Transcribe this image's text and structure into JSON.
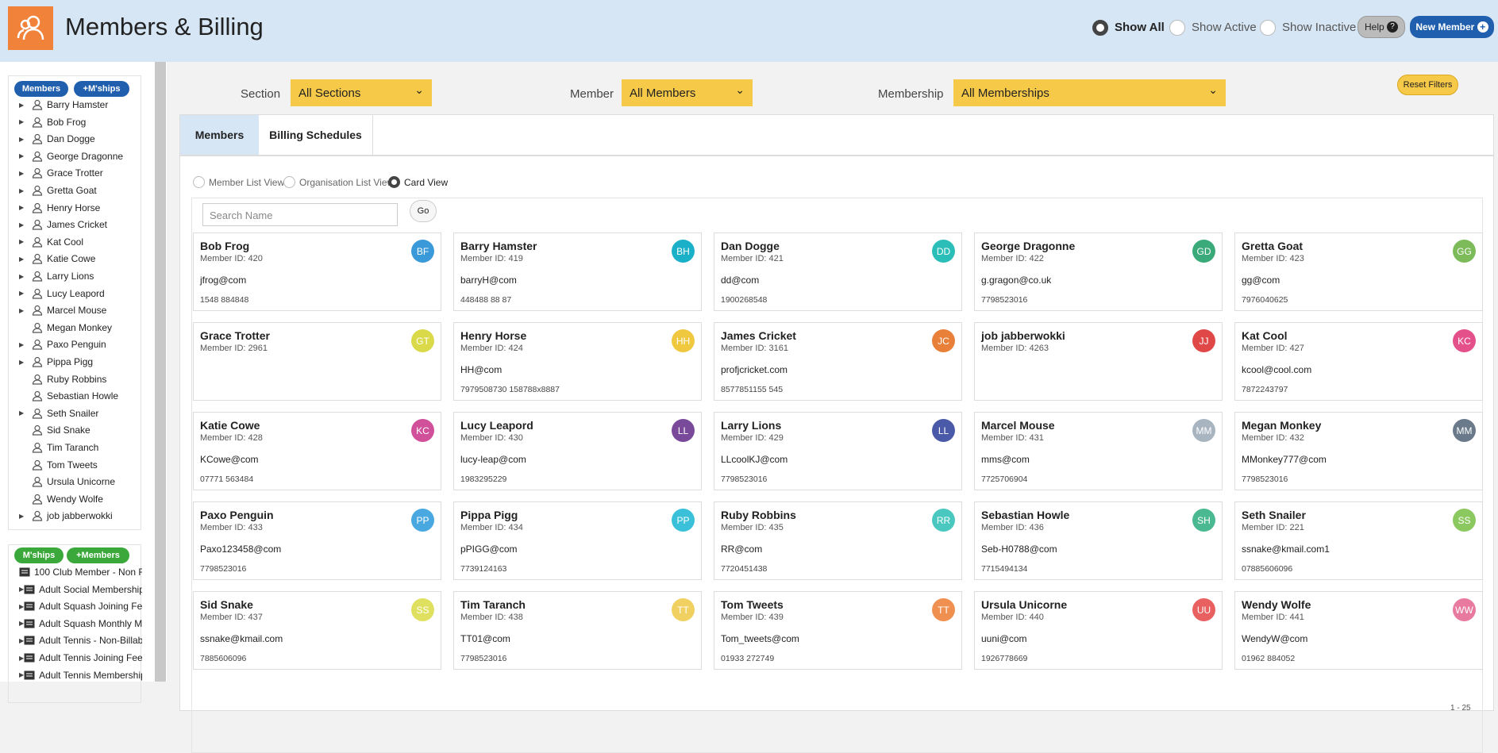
{
  "header": {
    "title": "Members & Billing",
    "radios": [
      "Show All",
      "Show Active",
      "Show Inactive"
    ],
    "help": "Help",
    "new_member": "New Member"
  },
  "sidebar": {
    "members_buttons": [
      "Members",
      "+M'ships"
    ],
    "members": [
      {
        "name": "Barry Hamster",
        "expandable": true
      },
      {
        "name": "Bob Frog",
        "expandable": true
      },
      {
        "name": "Dan Dogge",
        "expandable": true
      },
      {
        "name": "George Dragonne",
        "expandable": true
      },
      {
        "name": "Grace Trotter",
        "expandable": true
      },
      {
        "name": "Gretta Goat",
        "expandable": true
      },
      {
        "name": "Henry Horse",
        "expandable": true
      },
      {
        "name": "James Cricket",
        "expandable": true
      },
      {
        "name": "Kat Cool",
        "expandable": true
      },
      {
        "name": "Katie Cowe",
        "expandable": true
      },
      {
        "name": "Larry Lions",
        "expandable": true
      },
      {
        "name": "Lucy Leapord",
        "expandable": true
      },
      {
        "name": "Marcel Mouse",
        "expandable": true
      },
      {
        "name": "Megan Monkey",
        "expandable": false
      },
      {
        "name": "Paxo Penguin",
        "expandable": true
      },
      {
        "name": "Pippa Pigg",
        "expandable": true
      },
      {
        "name": "Ruby Robbins",
        "expandable": false
      },
      {
        "name": "Sebastian Howle",
        "expandable": false
      },
      {
        "name": "Seth Snailer",
        "expandable": true
      },
      {
        "name": "Sid Snake",
        "expandable": false
      },
      {
        "name": "Tim Taranch",
        "expandable": false
      },
      {
        "name": "Tom Tweets",
        "expandable": false
      },
      {
        "name": "Ursula Unicorne",
        "expandable": false
      },
      {
        "name": "Wendy Wolfe",
        "expandable": false
      },
      {
        "name": "job jabberwokki",
        "expandable": true
      }
    ],
    "memberships_buttons": [
      "M'ships",
      "+Members"
    ],
    "memberships": [
      {
        "name": "100 Club Member - Non F",
        "expandable": false
      },
      {
        "name": "Adult Social Membership",
        "expandable": true
      },
      {
        "name": "Adult Squash Joining Fee",
        "expandable": true
      },
      {
        "name": "Adult Squash Monthly Me",
        "expandable": true
      },
      {
        "name": "Adult Tennis - Non-Billabl",
        "expandable": true
      },
      {
        "name": "Adult Tennis Joining Fee",
        "expandable": true
      },
      {
        "name": "Adult Tennis Membership",
        "expandable": true
      }
    ]
  },
  "filters": [
    {
      "label": "Section",
      "value": "All Sections"
    },
    {
      "label": "Member",
      "value": "All Members"
    },
    {
      "label": "Membership",
      "value": "All Memberships"
    }
  ],
  "reset": "Reset Filters",
  "tabs": [
    "Members",
    "Billing Schedules"
  ],
  "views": [
    "Member List View",
    "Organisation List View",
    "Card View"
  ],
  "search_placeholder": "Search Name",
  "go": "Go",
  "cards": [
    {
      "name": "Bob Frog",
      "id": "Member ID: 420",
      "email": "jfrog@com",
      "phone": "1548 884848",
      "initials": "BF",
      "color": "#3a9ad9"
    },
    {
      "name": "Barry Hamster",
      "id": "Member ID: 419",
      "email": "barryH@com",
      "phone": "448488 88 87",
      "initials": "BH",
      "color": "#1ab0c8"
    },
    {
      "name": "Dan Dogge",
      "id": "Member ID: 421",
      "email": "dd@com",
      "phone": "1900268548",
      "initials": "DD",
      "color": "#2bbdb8"
    },
    {
      "name": "George Dragonne",
      "id": "Member ID: 422",
      "email": "g.gragon@co.uk",
      "phone": "7798523016",
      "initials": "GD",
      "color": "#3aaa7a"
    },
    {
      "name": "Gretta Goat",
      "id": "Member ID: 423",
      "email": "gg@com",
      "phone": "7976040625",
      "initials": "GG",
      "color": "#7dbb5a"
    },
    {
      "name": "Grace Trotter",
      "id": "Member ID: 2961",
      "email": "",
      "phone": "",
      "initials": "GT",
      "color": "#d9d94a"
    },
    {
      "name": "Henry Horse",
      "id": "Member ID: 424",
      "email": "HH@com",
      "phone": "7979508730 158788x8887",
      "initials": "HH",
      "color": "#f0c840"
    },
    {
      "name": "James Cricket",
      "id": "Member ID: 3161",
      "email": "profjcricket.com",
      "phone": "8577851155 545",
      "initials": "JC",
      "color": "#e8803a"
    },
    {
      "name": "job jabberwokki",
      "id": "Member ID: 4263",
      "email": "",
      "phone": "",
      "initials": "JJ",
      "color": "#e04848"
    },
    {
      "name": "Kat Cool",
      "id": "Member ID: 427",
      "email": "kcool@cool.com",
      "phone": "7872243797",
      "initials": "KC",
      "color": "#e4508a"
    },
    {
      "name": "Katie Cowe",
      "id": "Member ID: 428",
      "email": "KCowe@com",
      "phone": "07771 563484",
      "initials": "KC",
      "color": "#d0509a"
    },
    {
      "name": "Lucy Leapord",
      "id": "Member ID: 430",
      "email": "lucy-leap@com",
      "phone": "1983295229",
      "initials": "LL",
      "color": "#7a4a9a"
    },
    {
      "name": "Larry Lions",
      "id": "Member ID: 429",
      "email": "LLcoolKJ@com",
      "phone": "7798523016",
      "initials": "LL",
      "color": "#4a5aa8"
    },
    {
      "name": "Marcel Mouse",
      "id": "Member ID: 431",
      "email": "mms@com",
      "phone": "7725706904",
      "initials": "MM",
      "color": "#a8b4c0"
    },
    {
      "name": "Megan Monkey",
      "id": "Member ID: 432",
      "email": "MMonkey777@com",
      "phone": "7798523016",
      "initials": "MM",
      "color": "#6a7a8a"
    },
    {
      "name": "Paxo Penguin",
      "id": "Member ID: 433",
      "email": "Paxo123458@com",
      "phone": "7798523016",
      "initials": "PP",
      "color": "#4aa8e0"
    },
    {
      "name": "Pippa Pigg",
      "id": "Member ID: 434",
      "email": "pPIGG@com",
      "phone": "7739124163",
      "initials": "PP",
      "color": "#3ac0d8"
    },
    {
      "name": "Ruby Robbins",
      "id": "Member ID: 435",
      "email": "RR@com",
      "phone": "7720451438",
      "initials": "RR",
      "color": "#4ac8c0"
    },
    {
      "name": "Sebastian Howle",
      "id": "Member ID: 436",
      "email": "Seb-H0788@com",
      "phone": "7715494134",
      "initials": "SH",
      "color": "#4ab890"
    },
    {
      "name": "Seth Snailer",
      "id": "Member ID: 221",
      "email": "ssnake@kmail.com1",
      "phone": "07885606096",
      "initials": "SS",
      "color": "#8cc860"
    },
    {
      "name": "Sid Snake",
      "id": "Member ID: 437",
      "email": "ssnake@kmail.com",
      "phone": "7885606096",
      "initials": "SS",
      "color": "#e0e060"
    },
    {
      "name": "Tim Taranch",
      "id": "Member ID: 438",
      "email": "TT01@com",
      "phone": "7798523016",
      "initials": "TT",
      "color": "#f0d060"
    },
    {
      "name": "Tom Tweets",
      "id": "Member ID: 439",
      "email": "Tom_tweets@com",
      "phone": "01933 272749",
      "initials": "TT",
      "color": "#f09050"
    },
    {
      "name": "Ursula Unicorne",
      "id": "Member ID: 440",
      "email": "uuni@com",
      "phone": "1926778669",
      "initials": "UU",
      "color": "#e86060"
    },
    {
      "name": "Wendy Wolfe",
      "id": "Member ID: 441",
      "email": "WendyW@com",
      "phone": "01962 884052",
      "initials": "WW",
      "color": "#e87aa0"
    }
  ],
  "pagination": "1 - 25"
}
